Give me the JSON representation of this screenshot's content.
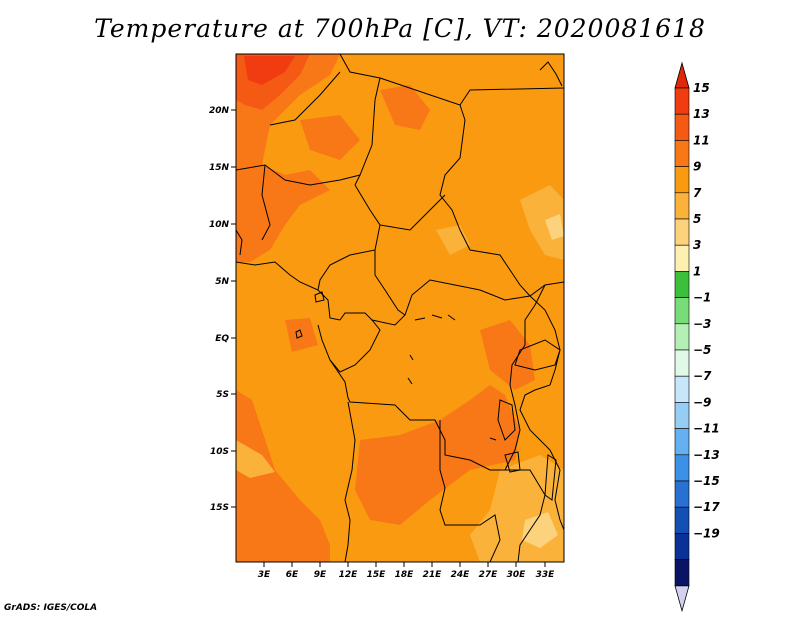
{
  "title": "Temperature at 700hPa [C], VT: 2020081618",
  "credit": "GrADS: IGES/COLA",
  "map": {
    "lat_ticks": [
      "20N",
      "15N",
      "10N",
      "5N",
      "EQ",
      "5S",
      "10S",
      "15S"
    ],
    "lon_ticks": [
      "3E",
      "6E",
      "9E",
      "12E",
      "15E",
      "18E",
      "21E",
      "24E",
      "27E",
      "30E",
      "33E"
    ]
  },
  "colorbar": {
    "labels": [
      "15",
      "13",
      "11",
      "9",
      "7",
      "5",
      "3",
      "1",
      "−1",
      "−3",
      "−5",
      "−7",
      "−9",
      "−11",
      "−13",
      "−15",
      "−17",
      "−19"
    ],
    "colors": [
      "#f03c10",
      "#f55a14",
      "#f87818",
      "#fa9a10",
      "#fbb23a",
      "#fdd27c",
      "#fdf0b0",
      "#3cc03c",
      "#78dc78",
      "#b4f0b4",
      "#e0f8e8",
      "#c8e6fa",
      "#96cdf5",
      "#64b0f0",
      "#3c90e6",
      "#2870d2",
      "#1450b4",
      "#0a3296",
      "#0a1464"
    ],
    "top_arrow_color": "#e02808",
    "bottom_arrow_color": "#d2d2f0"
  }
}
